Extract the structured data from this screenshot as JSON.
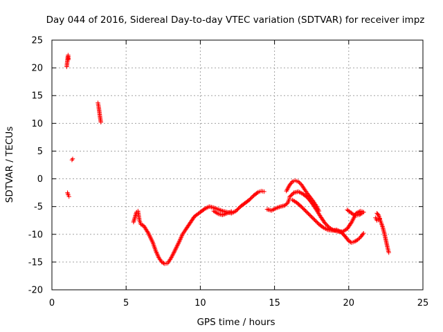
{
  "chart_data": {
    "type": "scatter",
    "title": "Day 044 of 2016, Sidereal Day-to-day VTEC variation (SDTVAR) for receiver impz",
    "xlabel": "GPS time / hours",
    "ylabel": "SDTVAR / TECUs",
    "xlim": [
      0,
      25
    ],
    "ylim": [
      -20,
      25
    ],
    "xticks": [
      "0",
      "5",
      "10",
      "15",
      "20",
      "25"
    ],
    "yticks": [
      "25",
      "20",
      "15",
      "10",
      "5",
      "0",
      "-5",
      "-10",
      "-15",
      "-20"
    ],
    "grid": true,
    "marker": "plus",
    "color": "#ff0000",
    "series": [
      {
        "name": "seg1",
        "x": [
          1.0,
          1.03,
          1.06,
          1.09,
          1.12
        ],
        "y": [
          20.2,
          21.0,
          21.8,
          22.3,
          21.5
        ]
      },
      {
        "name": "seg2",
        "x": [
          1.05,
          1.1,
          1.15
        ],
        "y": [
          -2.5,
          -2.9,
          -3.2
        ]
      },
      {
        "name": "seg3",
        "x": [
          1.35,
          1.4
        ],
        "y": [
          3.4,
          3.6
        ]
      },
      {
        "name": "seg4",
        "x": [
          3.1,
          3.15,
          3.2,
          3.25,
          3.3
        ],
        "y": [
          13.7,
          13.0,
          12.0,
          11.0,
          10.2
        ]
      },
      {
        "name": "seg5",
        "x": [
          5.5,
          5.7,
          5.8,
          5.9,
          6.0,
          6.2,
          6.5,
          6.8,
          7.0,
          7.2,
          7.4,
          7.6,
          7.8,
          8.0,
          8.2,
          8.4,
          8.6,
          8.8,
          9.0,
          9.3,
          9.6,
          10.0,
          10.3,
          10.6,
          10.9,
          11.2,
          11.5,
          11.8,
          12.1,
          12.4,
          12.7,
          13.0,
          13.3,
          13.6,
          13.9,
          14.1,
          14.3
        ],
        "y": [
          -7.8,
          -6.0,
          -5.8,
          -7.5,
          -8.2,
          -8.5,
          -9.8,
          -11.5,
          -13.0,
          -14.2,
          -15.0,
          -15.3,
          -15.2,
          -14.4,
          -13.4,
          -12.3,
          -11.2,
          -10.0,
          -9.2,
          -8.0,
          -6.8,
          -6.0,
          -5.4,
          -5.0,
          -5.2,
          -5.5,
          -5.8,
          -6.0,
          -6.2,
          -5.8,
          -5.0,
          -4.4,
          -3.8,
          -3.0,
          -2.4,
          -2.2,
          -2.3
        ]
      },
      {
        "name": "seg6",
        "x": [
          10.9,
          11.2,
          11.5,
          11.8,
          12.1
        ],
        "y": [
          -5.8,
          -6.3,
          -6.5,
          -6.2,
          -5.9
        ]
      },
      {
        "name": "seg7",
        "x": [
          14.5,
          14.8,
          15.1,
          15.4,
          15.7,
          15.9,
          16.0
        ],
        "y": [
          -5.5,
          -5.7,
          -5.3,
          -5.0,
          -4.8,
          -4.3,
          -3.6
        ]
      },
      {
        "name": "seg8",
        "x": [
          15.8,
          16.0,
          16.2,
          16.4,
          16.6,
          16.8,
          17.0,
          17.2,
          17.4,
          17.6,
          17.8,
          18.0
        ],
        "y": [
          -2.2,
          -1.2,
          -0.5,
          -0.3,
          -0.5,
          -1.0,
          -1.8,
          -2.6,
          -3.3,
          -4.0,
          -4.8,
          -5.8
        ]
      },
      {
        "name": "seg9",
        "x": [
          16.0,
          16.3,
          16.6,
          16.9,
          17.2,
          17.5,
          17.8,
          18.1,
          18.4,
          18.7,
          19.0,
          19.3,
          19.6,
          19.9,
          20.2,
          20.5,
          20.8,
          21.0
        ],
        "y": [
          -3.3,
          -2.5,
          -2.3,
          -2.7,
          -3.3,
          -4.3,
          -5.5,
          -6.8,
          -8.0,
          -8.8,
          -9.3,
          -9.5,
          -9.5,
          -9.0,
          -7.8,
          -6.2,
          -5.8,
          -6.0
        ]
      },
      {
        "name": "seg10",
        "x": [
          16.2,
          16.5,
          16.8,
          17.1,
          17.4,
          17.7,
          18.0,
          18.3,
          18.6,
          18.9,
          19.2,
          19.5,
          19.8,
          20.0,
          20.2,
          20.4,
          20.6,
          20.8,
          21.0
        ],
        "y": [
          -3.8,
          -4.3,
          -5.0,
          -5.8,
          -6.6,
          -7.4,
          -8.2,
          -8.8,
          -9.2,
          -9.3,
          -9.2,
          -9.6,
          -10.5,
          -11.2,
          -11.5,
          -11.3,
          -11.0,
          -10.5,
          -9.8
        ]
      },
      {
        "name": "seg11",
        "x": [
          19.9,
          20.1,
          20.3,
          20.5,
          20.7,
          20.9,
          21.0
        ],
        "y": [
          -5.6,
          -6.0,
          -6.4,
          -6.6,
          -6.5,
          -6.2,
          -6.0
        ]
      },
      {
        "name": "seg12",
        "x": [
          21.9,
          22.0,
          22.1,
          22.2,
          22.3,
          22.4,
          22.5,
          22.6,
          22.7
        ],
        "y": [
          -6.2,
          -6.5,
          -7.3,
          -8.0,
          -8.8,
          -9.8,
          -11.0,
          -12.2,
          -13.3
        ]
      },
      {
        "name": "seg13",
        "x": [
          21.8,
          21.9,
          22.0,
          22.1
        ],
        "y": [
          -7.0,
          -7.5,
          -7.4,
          -7.2
        ]
      }
    ]
  }
}
